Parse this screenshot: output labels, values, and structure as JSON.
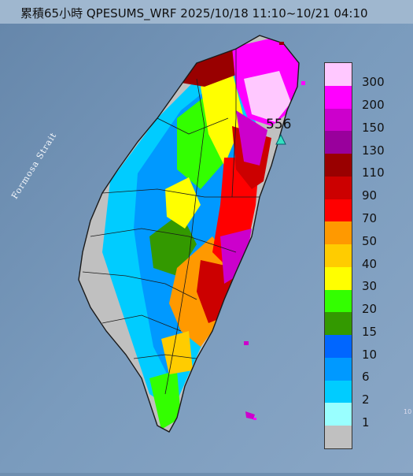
{
  "title": "累積65小時 QPESUMS_WRF 2025/10/18 11:10~10/21 04:10",
  "sea_label": "Formosa Strait",
  "max_station": {
    "value_label": "556",
    "icon": "triangle-marker-icon"
  },
  "corner_mark": "10",
  "legend": {
    "levels": [
      {
        "label": "300",
        "color": "#ffc8ff"
      },
      {
        "label": "200",
        "color": "#ff00ff"
      },
      {
        "label": "150",
        "color": "#cc00cc"
      },
      {
        "label": "130",
        "color": "#99009c"
      },
      {
        "label": "110",
        "color": "#990000"
      },
      {
        "label": "90",
        "color": "#cc0000"
      },
      {
        "label": "70",
        "color": "#ff0000"
      },
      {
        "label": "50",
        "color": "#ff9900"
      },
      {
        "label": "40",
        "color": "#ffcc00"
      },
      {
        "label": "30",
        "color": "#ffff00"
      },
      {
        "label": "20",
        "color": "#33ff00"
      },
      {
        "label": "15",
        "color": "#339900"
      },
      {
        "label": "10",
        "color": "#0066ff"
      },
      {
        "label": "6",
        "color": "#0099ff"
      },
      {
        "label": "2",
        "color": "#00ccff"
      },
      {
        "label": "1",
        "color": "#99ffff"
      },
      {
        "label": "",
        "color": "#c0c0c0"
      }
    ]
  }
}
